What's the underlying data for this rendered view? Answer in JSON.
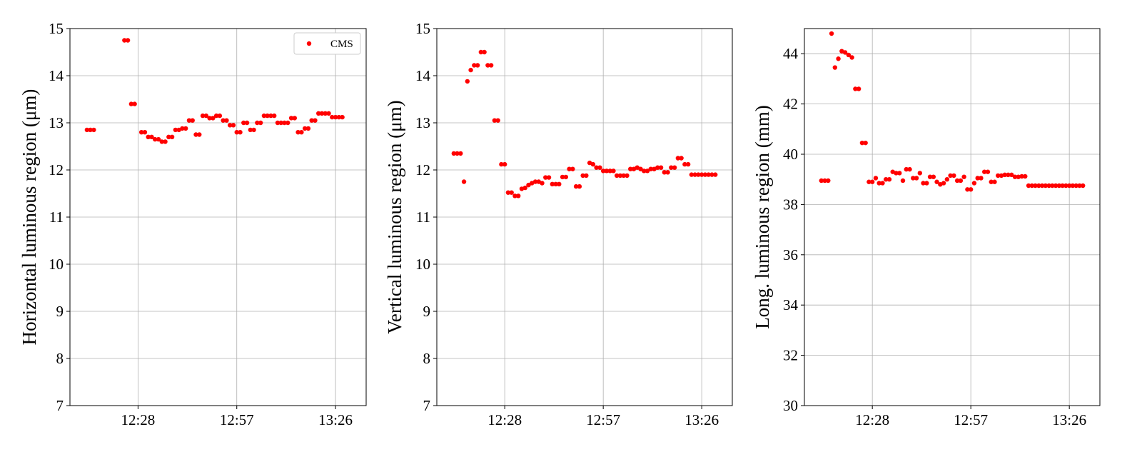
{
  "chart_data": [
    {
      "type": "scatter",
      "ylabel": "Horizontal luminous region (μm)",
      "xlabel": "",
      "ylim": [
        7,
        15
      ],
      "yticks": [
        "7",
        "8",
        "9",
        "10",
        "11",
        "12",
        "13",
        "14",
        "15"
      ],
      "xticks": [
        "12:28",
        "12:57",
        "13:26"
      ],
      "grid": true,
      "legend": {
        "placement": "top-right",
        "entries": [
          "CMS"
        ]
      },
      "series": [
        {
          "name": "CMS",
          "color": "#ff0000",
          "x": [
            "12:13",
            "12:14",
            "12:15",
            "12:24",
            "12:25",
            "12:26",
            "12:27",
            "12:29",
            "12:30",
            "12:31",
            "12:32",
            "12:33",
            "12:34",
            "12:35",
            "12:36",
            "12:37",
            "12:38",
            "12:39",
            "12:40",
            "12:41",
            "12:42",
            "12:43",
            "12:44",
            "12:45",
            "12:46",
            "12:47",
            "12:48",
            "12:49",
            "12:50",
            "12:51",
            "12:52",
            "12:53",
            "12:54",
            "12:55",
            "12:56",
            "12:57",
            "12:58",
            "12:59",
            "13:00",
            "13:01",
            "13:02",
            "13:03",
            "13:04",
            "13:05",
            "13:06",
            "13:07",
            "13:08",
            "13:09",
            "13:10",
            "13:11",
            "13:12",
            "13:13",
            "13:14",
            "13:15",
            "13:16",
            "13:17",
            "13:18",
            "13:19",
            "13:20",
            "13:21",
            "13:22",
            "13:23",
            "13:24",
            "13:25",
            "13:26",
            "13:27",
            "13:28"
          ],
          "y": [
            12.85,
            12.85,
            12.85,
            14.75,
            14.75,
            13.4,
            13.4,
            12.8,
            12.8,
            12.7,
            12.7,
            12.65,
            12.65,
            12.6,
            12.6,
            12.7,
            12.7,
            12.85,
            12.85,
            12.88,
            12.88,
            13.05,
            13.05,
            12.75,
            12.75,
            13.15,
            13.15,
            13.1,
            13.1,
            13.15,
            13.15,
            13.05,
            13.05,
            12.95,
            12.95,
            12.8,
            12.8,
            13.0,
            13.0,
            12.85,
            12.85,
            13.0,
            13.0,
            13.15,
            13.15,
            13.15,
            13.15,
            13.0,
            13.0,
            13.0,
            13.0,
            13.1,
            13.1,
            12.8,
            12.8,
            12.88,
            12.88,
            13.05,
            13.05,
            13.2,
            13.2,
            13.2,
            13.2,
            13.12,
            13.12,
            13.12,
            13.12
          ]
        }
      ]
    },
    {
      "type": "scatter",
      "ylabel": "Vertical luminous region (μm)",
      "xlabel": "",
      "ylim": [
        7,
        15
      ],
      "yticks": [
        "7",
        "8",
        "9",
        "10",
        "11",
        "12",
        "13",
        "14",
        "15"
      ],
      "xticks": [
        "12:28",
        "12:57",
        "13:26"
      ],
      "grid": true,
      "series": [
        {
          "name": "CMS",
          "color": "#ff0000",
          "x": [
            "12:13",
            "12:14",
            "12:15",
            "12:16",
            "12:17",
            "12:18",
            "12:19",
            "12:20",
            "12:21",
            "12:22",
            "12:23",
            "12:24",
            "12:25",
            "12:26",
            "12:27",
            "12:28",
            "12:29",
            "12:30",
            "12:31",
            "12:32",
            "12:33",
            "12:34",
            "12:35",
            "12:36",
            "12:37",
            "12:38",
            "12:39",
            "12:40",
            "12:41",
            "12:42",
            "12:43",
            "12:44",
            "12:45",
            "12:46",
            "12:47",
            "12:48",
            "12:49",
            "12:50",
            "12:51",
            "12:52",
            "12:53",
            "12:54",
            "12:55",
            "12:56",
            "12:57",
            "12:58",
            "12:59",
            "13:00",
            "13:01",
            "13:02",
            "13:03",
            "13:04",
            "13:05",
            "13:06",
            "13:07",
            "13:08",
            "13:09",
            "13:10",
            "13:11",
            "13:12",
            "13:13",
            "13:14",
            "13:15",
            "13:16",
            "13:17",
            "13:18",
            "13:19",
            "13:20",
            "13:21",
            "13:22",
            "13:23",
            "13:24",
            "13:25",
            "13:26",
            "13:27",
            "13:28",
            "13:29",
            "13:30"
          ],
          "y": [
            12.35,
            12.35,
            12.35,
            11.75,
            13.88,
            14.12,
            14.22,
            14.22,
            14.5,
            14.5,
            14.22,
            14.22,
            13.05,
            13.05,
            12.12,
            12.12,
            11.52,
            11.52,
            11.45,
            11.45,
            11.6,
            11.62,
            11.68,
            11.72,
            11.75,
            11.75,
            11.72,
            11.84,
            11.84,
            11.7,
            11.7,
            11.7,
            11.85,
            11.85,
            12.02,
            12.02,
            11.65,
            11.65,
            11.88,
            11.88,
            12.15,
            12.12,
            12.05,
            12.05,
            11.98,
            11.98,
            11.98,
            11.98,
            11.88,
            11.88,
            11.88,
            11.88,
            12.02,
            12.02,
            12.05,
            12.02,
            11.98,
            11.98,
            12.02,
            12.02,
            12.05,
            12.05,
            11.95,
            11.95,
            12.05,
            12.05,
            12.25,
            12.25,
            12.12,
            12.12,
            11.9,
            11.9,
            11.9,
            11.9,
            11.9,
            11.9,
            11.9,
            11.9
          ]
        }
      ]
    },
    {
      "type": "scatter",
      "ylabel": "Long. luminous region (mm)",
      "xlabel": "",
      "ylim": [
        30,
        45
      ],
      "yticks": [
        "30",
        "32",
        "34",
        "36",
        "38",
        "40",
        "42",
        "44"
      ],
      "xticks": [
        "12:28",
        "12:57",
        "13:26"
      ],
      "grid": true,
      "series": [
        {
          "name": "CMS",
          "color": "#ff0000",
          "x": [
            "12:13",
            "12:14",
            "12:15",
            "12:16",
            "12:17",
            "12:18",
            "12:19",
            "12:20",
            "12:21",
            "12:22",
            "12:23",
            "12:24",
            "12:25",
            "12:26",
            "12:27",
            "12:28",
            "12:29",
            "12:30",
            "12:31",
            "12:32",
            "12:33",
            "12:34",
            "12:35",
            "12:36",
            "12:37",
            "12:38",
            "12:39",
            "12:40",
            "12:41",
            "12:42",
            "12:43",
            "12:44",
            "12:45",
            "12:46",
            "12:47",
            "12:48",
            "12:49",
            "12:50",
            "12:51",
            "12:52",
            "12:53",
            "12:54",
            "12:55",
            "12:56",
            "12:57",
            "12:58",
            "12:59",
            "13:00",
            "13:01",
            "13:02",
            "13:03",
            "13:04",
            "13:05",
            "13:06",
            "13:07",
            "13:08",
            "13:09",
            "13:10",
            "13:11",
            "13:12",
            "13:13",
            "13:14",
            "13:15",
            "13:16",
            "13:17",
            "13:18",
            "13:19",
            "13:20",
            "13:21",
            "13:22",
            "13:23",
            "13:24",
            "13:25",
            "13:26",
            "13:27",
            "13:28",
            "13:29",
            "13:30"
          ],
          "y": [
            38.95,
            38.95,
            38.95,
            44.8,
            43.45,
            43.8,
            44.1,
            44.05,
            43.95,
            43.85,
            42.6,
            42.6,
            40.45,
            40.45,
            38.9,
            38.9,
            39.05,
            38.85,
            38.85,
            39.0,
            39.0,
            39.3,
            39.25,
            39.25,
            38.95,
            39.4,
            39.4,
            39.05,
            39.05,
            39.25,
            38.85,
            38.85,
            39.1,
            39.1,
            38.9,
            38.8,
            38.85,
            39.0,
            39.15,
            39.15,
            38.95,
            38.95,
            39.1,
            38.6,
            38.6,
            38.85,
            39.05,
            39.05,
            39.3,
            39.3,
            38.9,
            38.9,
            39.15,
            39.15,
            39.18,
            39.18,
            39.18,
            39.1,
            39.1,
            39.12,
            39.12,
            38.75,
            38.75,
            38.75,
            38.75,
            38.75,
            38.75,
            38.75,
            38.75,
            38.75,
            38.75,
            38.75,
            38.75,
            38.75,
            38.75,
            38.75,
            38.75,
            38.75
          ]
        }
      ]
    }
  ]
}
